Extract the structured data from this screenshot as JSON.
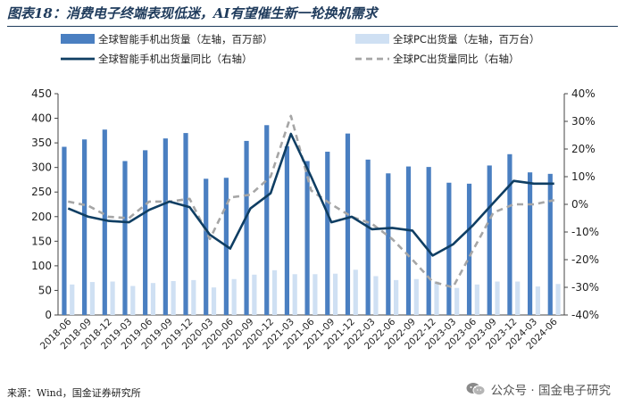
{
  "header": {
    "title": "图表18：消费电子终端表现低迷，AI有望催生新一轮换机需求"
  },
  "footer": {
    "source": "来源：Wind，国金证券研究所",
    "watermark": "公众号 · 国金电子研究",
    "watermark_icon": "wechat-icon"
  },
  "colors": {
    "phone_bar": "#4a7fc1",
    "pc_bar": "#cfe0f3",
    "phone_line": "#0f3e63",
    "pc_line": "#a6a6a6"
  },
  "chart_data": {
    "type": "bar",
    "title": "",
    "xlabel": "",
    "ylabel_left": "",
    "ylabel_right": "",
    "categories": [
      "2018-06",
      "2018-09",
      "2018-12",
      "2019-03",
      "2019-06",
      "2019-09",
      "2019-12",
      "2020-03",
      "2020-06",
      "2020-09",
      "2020-12",
      "2021-03",
      "2021-06",
      "2021-09",
      "2021-12",
      "2022-03",
      "2022-06",
      "2022-09",
      "2022-12",
      "2023-03",
      "2023-06",
      "2023-09",
      "2023-12",
      "2024-03",
      "2024-06"
    ],
    "y_left": {
      "min": 0,
      "max": 450,
      "ticks": [
        0,
        50,
        100,
        150,
        200,
        250,
        300,
        350,
        400,
        450
      ]
    },
    "y_right": {
      "min": -40,
      "max": 40,
      "ticks": [
        -40,
        -30,
        -20,
        -10,
        0,
        10,
        20,
        30,
        40
      ],
      "tick_labels": [
        "-40%",
        "-30%",
        "-20%",
        "-10%",
        "0%",
        "10%",
        "20%",
        "30%",
        "40%"
      ]
    },
    "grid": false,
    "legend_position": "top",
    "series": [
      {
        "name": "全球智能手机出货量（左轴，百万部）",
        "kind": "bar",
        "axis": "left",
        "values": [
          342,
          357,
          377,
          313,
          335,
          359,
          370,
          277,
          279,
          354,
          386,
          343,
          313,
          332,
          369,
          316,
          288,
          302,
          301,
          269,
          267,
          304,
          327,
          290,
          287
        ]
      },
      {
        "name": "全球PC出货量（左轴，百万台）",
        "kind": "bar",
        "axis": "left",
        "values": [
          62,
          67,
          68,
          59,
          65,
          69,
          71,
          56,
          73,
          82,
          91,
          83,
          83,
          84,
          92,
          79,
          71,
          73,
          68,
          55,
          62,
          68,
          68,
          58,
          63
        ]
      },
      {
        "name": "全球智能手机出货量同比（右轴）",
        "kind": "line",
        "axis": "right",
        "values": [
          -1.5,
          -4.5,
          -6,
          -6.5,
          -2,
          1,
          -1,
          -11,
          -16,
          -1.5,
          4,
          25.5,
          10,
          -6.5,
          -4.5,
          -9,
          -8.5,
          -9.5,
          -18.5,
          -14.5,
          -7.5,
          0.5,
          8.5,
          7.5,
          7.5
        ]
      },
      {
        "name": "全球PC出货量同比（右轴）",
        "kind": "line",
        "axis": "right",
        "dashed": true,
        "values": [
          1,
          -0.5,
          -4.5,
          -5,
          1,
          1,
          2,
          -12.5,
          2.5,
          3.5,
          10,
          32,
          5,
          0,
          -4.5,
          -7,
          -12.5,
          -20,
          -28,
          -30,
          -16.5,
          -3,
          0,
          0,
          1.5
        ]
      }
    ]
  }
}
